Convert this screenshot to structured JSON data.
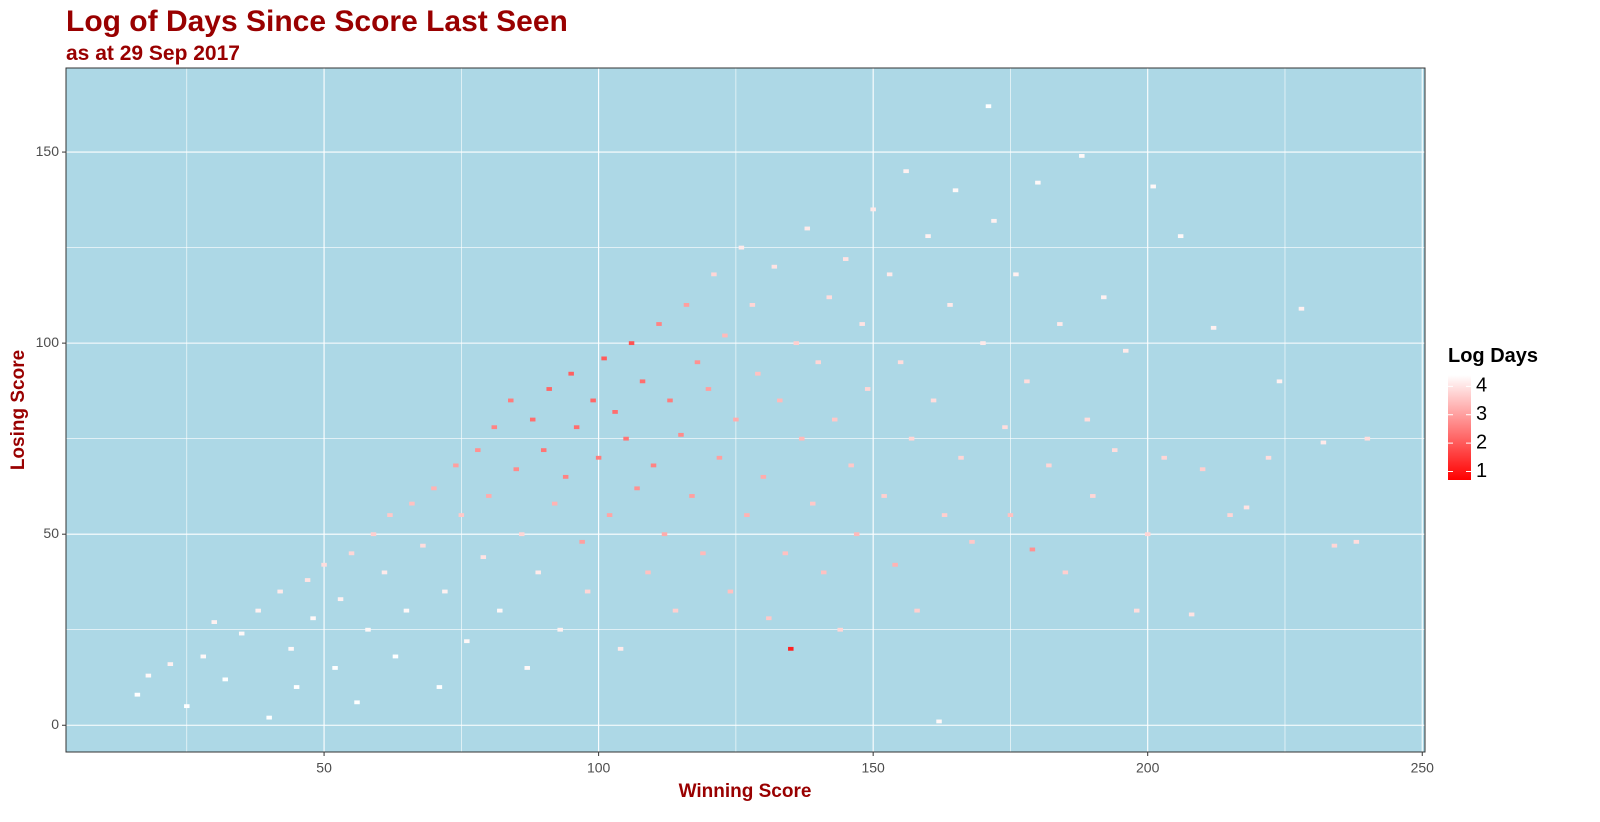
{
  "chart_data": {
    "type": "heatmap",
    "title": "Log of Days Since Score Last Seen",
    "subtitle": "as at 29 Sep 2017",
    "x_label": "Winning Score",
    "y_label": "Losing Score",
    "legend_title": "Log Days",
    "background": "#add8e6",
    "grid": true,
    "grid_color": "#ffffff",
    "title_color": "#990000",
    "low_color": "#ff0000",
    "high_color": "#ffffff",
    "xlim": [
      3,
      250.5
    ],
    "ylim": [
      -7,
      172
    ],
    "xticks": [
      50,
      100,
      150,
      200,
      250
    ],
    "yticks": [
      0,
      50,
      100,
      150
    ],
    "xminor": [
      25,
      75,
      125,
      175,
      225
    ],
    "yminor": [
      25,
      75,
      125
    ],
    "clim": [
      0.7,
      4.4
    ],
    "cticks": [
      1,
      2,
      3,
      4
    ],
    "x": [
      16,
      18,
      22,
      25,
      28,
      30,
      32,
      35,
      38,
      40,
      42,
      44,
      45,
      47,
      48,
      50,
      52,
      53,
      55,
      56,
      58,
      59,
      61,
      62,
      63,
      65,
      66,
      68,
      70,
      71,
      72,
      74,
      75,
      76,
      78,
      79,
      80,
      81,
      82,
      84,
      85,
      86,
      87,
      88,
      89,
      90,
      91,
      92,
      93,
      94,
      95,
      96,
      97,
      98,
      99,
      100,
      101,
      102,
      103,
      104,
      105,
      106,
      107,
      108,
      109,
      110,
      111,
      112,
      113,
      114,
      115,
      116,
      117,
      118,
      119,
      120,
      121,
      122,
      123,
      124,
      125,
      126,
      127,
      128,
      129,
      130,
      131,
      132,
      133,
      134,
      135,
      136,
      137,
      138,
      139,
      140,
      141,
      142,
      143,
      144,
      145,
      146,
      147,
      148,
      149,
      150,
      152,
      153,
      154,
      155,
      156,
      157,
      158,
      160,
      161,
      162,
      163,
      164,
      165,
      166,
      168,
      170,
      171,
      172,
      174,
      175,
      176,
      178,
      179,
      180,
      182,
      184,
      185,
      188,
      189,
      190,
      192,
      194,
      196,
      198,
      200,
      201,
      203,
      206,
      208,
      210,
      212,
      215,
      218,
      222,
      224,
      228,
      232,
      234,
      238,
      240
    ],
    "y": [
      8,
      13,
      16,
      5,
      18,
      27,
      12,
      24,
      30,
      2,
      35,
      20,
      10,
      38,
      28,
      42,
      15,
      33,
      45,
      6,
      25,
      50,
      40,
      55,
      18,
      30,
      58,
      47,
      62,
      10,
      35,
      68,
      55,
      22,
      72,
      44,
      60,
      78,
      30,
      85,
      67,
      50,
      15,
      80,
      40,
      72,
      88,
      58,
      25,
      65,
      92,
      78,
      48,
      35,
      85,
      70,
      96,
      55,
      82,
      20,
      75,
      100,
      62,
      90,
      40,
      68,
      105,
      50,
      85,
      30,
      76,
      110,
      60,
      95,
      45,
      88,
      118,
      70,
      102,
      35,
      80,
      125,
      55,
      110,
      92,
      65,
      28,
      120,
      85,
      45,
      20,
      100,
      75,
      130,
      58,
      95,
      40,
      112,
      80,
      25,
      122,
      68,
      50,
      105,
      88,
      135,
      60,
      118,
      42,
      95,
      145,
      75,
      30,
      128,
      85,
      1,
      55,
      110,
      140,
      70,
      48,
      100,
      162,
      132,
      78,
      55,
      118,
      90,
      46,
      142,
      68,
      105,
      40,
      149,
      80,
      60,
      112,
      72,
      98,
      30,
      50,
      141,
      70,
      128,
      29,
      67,
      104,
      55,
      57,
      70,
      90,
      109,
      74,
      47,
      48,
      75
    ],
    "values": [
      4.4,
      4.3,
      4.2,
      4.4,
      4.3,
      4.2,
      4.4,
      4.3,
      4.2,
      4.4,
      4.1,
      4.3,
      4.4,
      4.0,
      4.3,
      3.9,
      4.4,
      4.2,
      3.8,
      4.4,
      4.3,
      3.7,
      4.1,
      3.6,
      4.4,
      4.3,
      3.5,
      3.9,
      3.3,
      4.4,
      4.2,
      3.0,
      3.6,
      4.3,
      2.8,
      4.0,
      3.2,
      2.6,
      4.3,
      2.5,
      2.7,
      3.8,
      4.3,
      2.3,
      4.1,
      2.4,
      2.2,
      3.3,
      4.2,
      2.6,
      2.1,
      2.3,
      3.0,
      3.8,
      2.2,
      2.5,
      2.0,
      3.1,
      2.3,
      4.1,
      2.4,
      1.9,
      2.8,
      2.3,
      3.5,
      2.6,
      2.6,
      3.2,
      2.5,
      3.7,
      2.7,
      3.0,
      3.0,
      2.8,
      3.4,
      3.0,
      3.8,
      3.0,
      3.4,
      3.5,
      3.2,
      4.1,
      3.3,
      3.8,
      3.5,
      3.2,
      3.6,
      4.0,
      3.4,
      3.5,
      1.2,
      3.7,
      3.4,
      4.1,
      3.6,
      3.8,
      3.5,
      3.9,
      3.6,
      3.8,
      4.0,
      3.6,
      3.4,
      4.0,
      3.8,
      4.1,
      3.7,
      4.1,
      3.3,
      3.9,
      4.2,
      3.8,
      3.7,
      4.2,
      3.9,
      4.3,
      3.7,
      4.1,
      4.3,
      3.8,
      3.6,
      4.1,
      4.4,
      4.2,
      3.9,
      3.5,
      4.2,
      3.9,
      2.8,
      4.3,
      3.8,
      4.1,
      3.7,
      4.3,
      3.9,
      3.8,
      4.2,
      3.9,
      4.1,
      3.9,
      3.8,
      4.3,
      3.8,
      4.3,
      4.0,
      3.7,
      4.2,
      3.8,
      4.0,
      3.9,
      4.2,
      4.2,
      4.1,
      3.8,
      3.9,
      3.9
    ]
  }
}
